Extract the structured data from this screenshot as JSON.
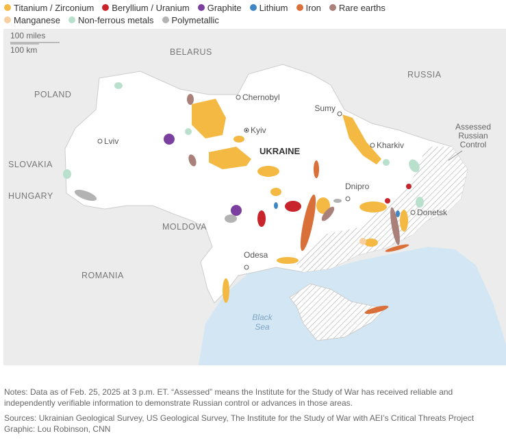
{
  "legend": {
    "items": [
      {
        "label": "Titanium / Zirconium",
        "color": "#f4b942"
      },
      {
        "label": "Beryllium / Uranium",
        "color": "#c8242b"
      },
      {
        "label": "Graphite",
        "color": "#7b3fa0"
      },
      {
        "label": "Lithium",
        "color": "#3f86c4"
      },
      {
        "label": "Iron",
        "color": "#d9703a"
      },
      {
        "label": "Rare earths",
        "color": "#a9807a"
      },
      {
        "label": "Manganese",
        "color": "#f7cfa0"
      },
      {
        "label": "Non-ferrous metals",
        "color": "#b9e0cc"
      },
      {
        "label": "Polymetallic",
        "color": "#b3b3b3"
      }
    ]
  },
  "map": {
    "scale": [
      "100 miles",
      "100 km"
    ],
    "countries": [
      "BELARUS",
      "POLAND",
      "SLOVAKIA",
      "HUNGARY",
      "MOLDOVA",
      "ROMANIA",
      "RUSSIA",
      "UKRAINE"
    ],
    "cities": [
      "Chernobyl",
      "Kyiv",
      "Sumy",
      "Lviv",
      "Kharkiv",
      "Dnipro",
      "Donetsk",
      "Odesa"
    ],
    "sea": [
      "Black",
      "Sea"
    ],
    "annotation": [
      "Assessed",
      "Russian",
      "Control"
    ]
  },
  "footer": {
    "notes": "Notes: Data as of Feb. 25, 2025 at 3 p.m. ET. “Assessed” means the Institute for the Study of War has received reliable and independently verifiable information to demonstrate Russian control or advances in those areas.",
    "sources": "Sources: Ukrainian Geological Survey, US Geological Survey, The Institute for the Study of War with AEI’s Critical Threats Project",
    "credit": "Graphic: Lou Robinson, CNN"
  }
}
